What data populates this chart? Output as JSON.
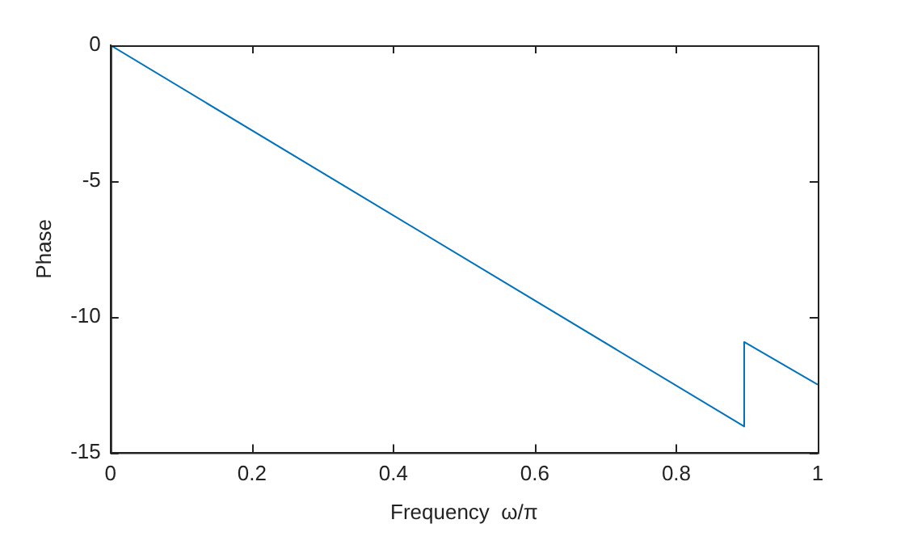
{
  "chart_data": {
    "type": "line",
    "xlabel": "Frequency  ω/π",
    "ylabel": "Phase",
    "series": [
      {
        "color": "#0072bd",
        "x": [
          0,
          0.896,
          0.896,
          1
        ],
        "values": [
          0,
          -14.04,
          -10.93,
          -12.5
        ]
      }
    ],
    "xlim": [
      0,
      1
    ],
    "xticks": [
      0,
      0.2,
      0.4,
      0.6,
      0.8,
      1
    ],
    "ylim": [
      -15,
      0
    ],
    "yticks": [
      -15,
      -10,
      -5,
      0
    ],
    "grid": false,
    "legend": false,
    "marker": "none",
    "line_style": "solid"
  }
}
